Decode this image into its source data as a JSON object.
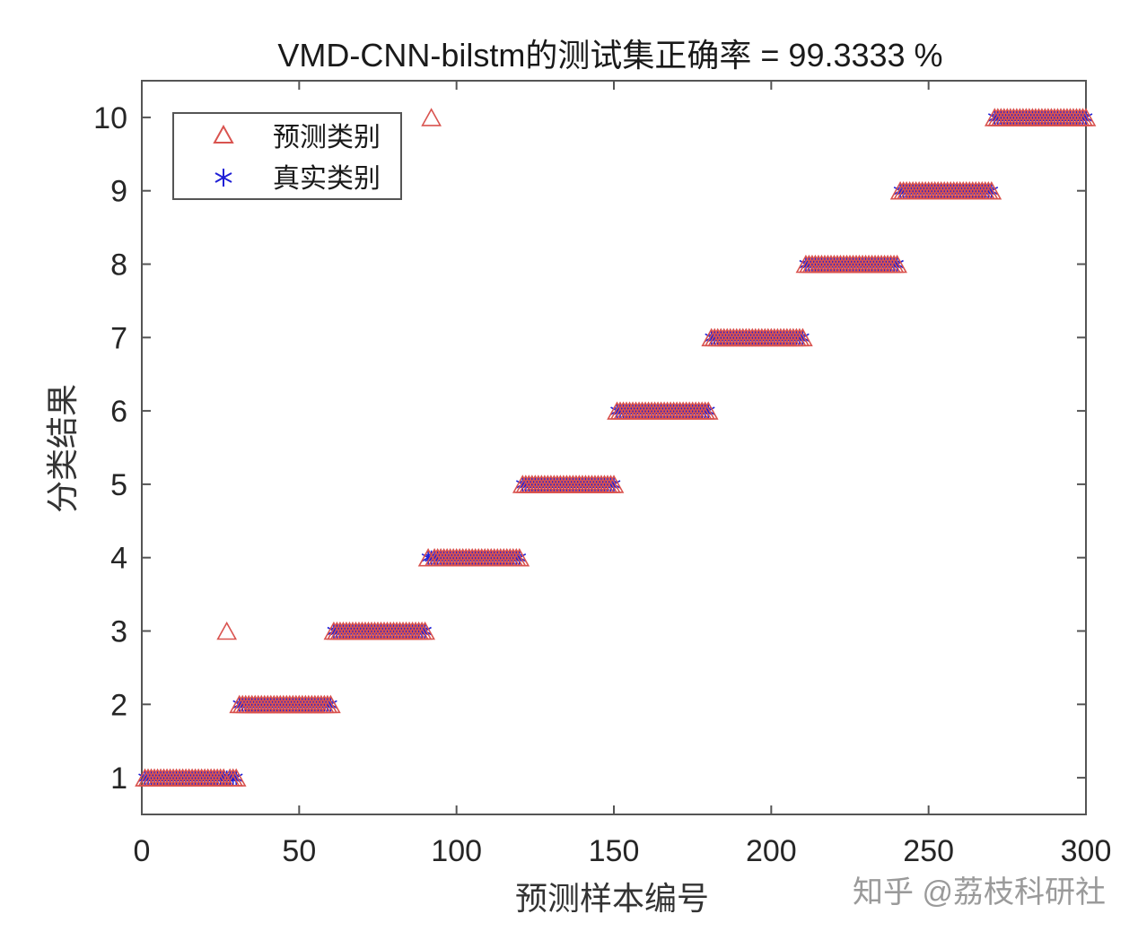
{
  "chart_data": {
    "type": "scatter",
    "title": "VMD-CNN-bilstm的测试集正确率 = 99.3333 %",
    "xlabel": "预测样本编号",
    "ylabel": "分类结果",
    "xlim": [
      0,
      300
    ],
    "ylim": [
      0.5,
      10.5
    ],
    "xticks": [
      0,
      50,
      100,
      150,
      200,
      250,
      300
    ],
    "yticks": [
      1,
      2,
      3,
      4,
      5,
      6,
      7,
      8,
      9,
      10
    ],
    "grid": false,
    "legend_position": "upper-left",
    "samples_per_class": 30,
    "num_samples": 300,
    "accuracy_percent": 99.3333,
    "series": [
      {
        "name": "预测类别",
        "marker": "triangle",
        "color": "#d9534f",
        "description": "Predicted class for each sample; equals true class except two misclassified samples",
        "misclassified": [
          {
            "x": 27,
            "true": 1,
            "predicted": 3
          },
          {
            "x": 92,
            "true": 4,
            "predicted": 10
          }
        ]
      },
      {
        "name": "真实类别",
        "marker": "asterisk",
        "color": "#1f1fd6",
        "description": "True class: samples 1-30 class 1, 31-60 class 2, ..., 271-300 class 10"
      }
    ],
    "segments": [
      {
        "class": 1,
        "x_start": 1,
        "x_end": 30
      },
      {
        "class": 2,
        "x_start": 31,
        "x_end": 60
      },
      {
        "class": 3,
        "x_start": 61,
        "x_end": 90
      },
      {
        "class": 4,
        "x_start": 91,
        "x_end": 120
      },
      {
        "class": 5,
        "x_start": 121,
        "x_end": 150
      },
      {
        "class": 6,
        "x_start": 151,
        "x_end": 180
      },
      {
        "class": 7,
        "x_start": 181,
        "x_end": 210
      },
      {
        "class": 8,
        "x_start": 211,
        "x_end": 240
      },
      {
        "class": 9,
        "x_start": 241,
        "x_end": 270
      },
      {
        "class": 10,
        "x_start": 271,
        "x_end": 300
      }
    ]
  },
  "legend": {
    "predicted_label": "预测类别",
    "true_label": "真实类别"
  },
  "watermark": "知乎 @荔枝科研社"
}
